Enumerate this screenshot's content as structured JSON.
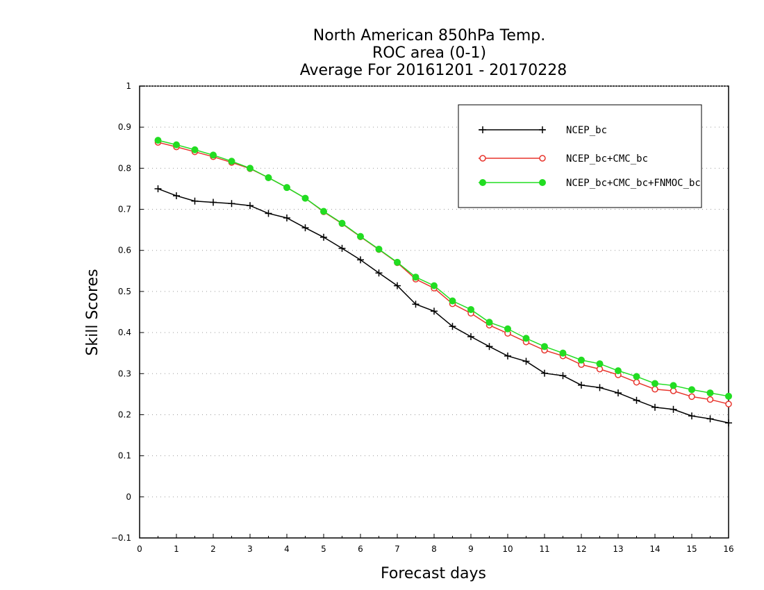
{
  "chart_data": {
    "type": "line",
    "title_lines": [
      "North American 850hPa Temp.",
      "ROC area (0-1)",
      "Average For 20161201 - 20170228"
    ],
    "xlabel": "Forecast days",
    "ylabel": "Skill Scores",
    "xlim": [
      0,
      16
    ],
    "ylim": [
      -0.1,
      1
    ],
    "x_ticks": [
      "0",
      "1",
      "2",
      "3",
      "4",
      "5",
      "6",
      "7",
      "8",
      "9",
      "10",
      "11",
      "12",
      "13",
      "14",
      "15",
      "16"
    ],
    "y_ticks": [
      "−0.1",
      "0",
      "0.1",
      "0.2",
      "0.3",
      "0.4",
      "0.5",
      "0.6",
      "0.7",
      "0.8",
      "0.9",
      "1"
    ],
    "grid": "horizontal dotted",
    "legend_position": "top-right",
    "x": [
      0.5,
      1,
      1.5,
      2,
      2.5,
      3,
      3.5,
      4,
      4.5,
      5,
      5.5,
      6,
      6.5,
      7,
      7.5,
      8,
      8.5,
      9,
      9.5,
      10,
      10.5,
      11,
      11.5,
      12,
      12.5,
      13,
      13.5,
      14,
      14.5,
      15,
      15.5,
      16
    ],
    "series": [
      {
        "name": "NCEP_bc",
        "color": "#000000",
        "marker": "plus",
        "values": [
          0.75,
          0.733,
          0.72,
          0.717,
          0.714,
          0.709,
          0.69,
          0.679,
          0.655,
          0.632,
          0.605,
          0.577,
          0.545,
          0.514,
          0.469,
          0.452,
          0.415,
          0.39,
          0.366,
          0.343,
          0.33,
          0.301,
          0.295,
          0.272,
          0.266,
          0.253,
          0.235,
          0.218,
          0.213,
          0.197,
          0.19,
          0.18
        ]
      },
      {
        "name": "NCEP_bc+CMC_bc",
        "color": "#e8342c",
        "marker": "open-circle",
        "values": [
          0.863,
          0.852,
          0.84,
          0.828,
          0.814,
          0.799,
          0.777,
          0.753,
          0.727,
          0.694,
          0.665,
          0.633,
          0.602,
          0.57,
          0.53,
          0.508,
          0.47,
          0.447,
          0.418,
          0.398,
          0.377,
          0.357,
          0.343,
          0.322,
          0.311,
          0.297,
          0.279,
          0.262,
          0.258,
          0.244,
          0.237,
          0.226
        ]
      },
      {
        "name": "NCEP_bc+CMC_bc+FNMOC_bc",
        "color": "#22dd22",
        "marker": "filled-circle",
        "values": [
          0.868,
          0.857,
          0.845,
          0.832,
          0.817,
          0.8,
          0.777,
          0.753,
          0.727,
          0.695,
          0.666,
          0.634,
          0.603,
          0.571,
          0.535,
          0.514,
          0.477,
          0.456,
          0.425,
          0.409,
          0.386,
          0.366,
          0.35,
          0.333,
          0.324,
          0.307,
          0.293,
          0.276,
          0.271,
          0.261,
          0.253,
          0.245
        ]
      }
    ]
  }
}
